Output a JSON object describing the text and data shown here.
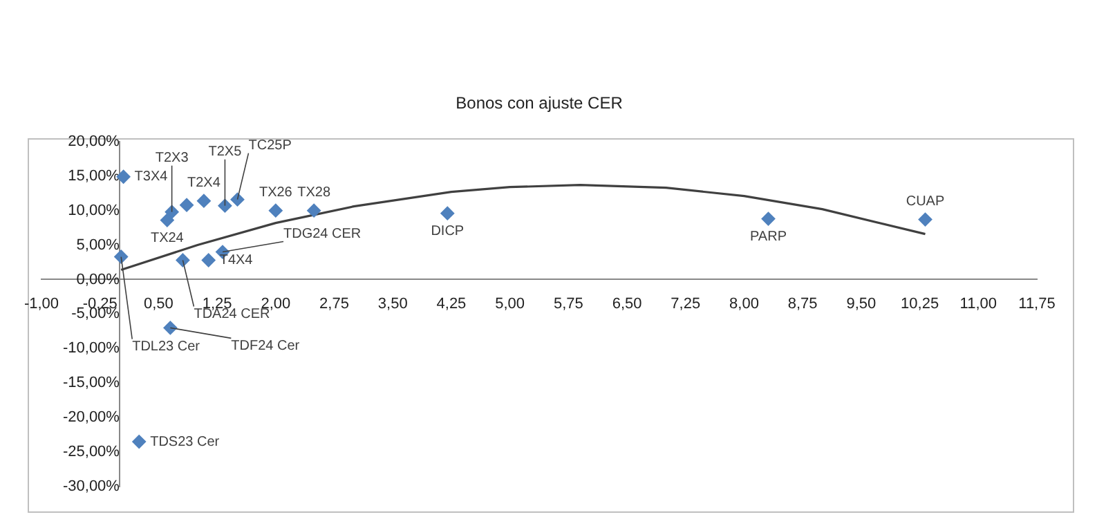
{
  "chart_data": {
    "type": "scatter",
    "title": "Bonos con ajuste CER",
    "marker": "diamond",
    "series": [
      {
        "color": "#4f81bd",
        "x": [
          0.05,
          0.02,
          0.67,
          0.61,
          0.86,
          1.08,
          1.35,
          1.51,
          2.0,
          2.49,
          0.81,
          1.14,
          1.32,
          4.2,
          8.31,
          10.32,
          0.65,
          0.25
        ],
        "values": [
          14.9,
          3.3,
          9.8,
          8.6,
          10.8,
          11.4,
          10.7,
          11.6,
          10.0,
          10.0,
          2.8,
          2.8,
          4.0,
          9.6,
          8.8,
          8.7,
          -7.0,
          -23.5
        ]
      },
      {
        "type": "line",
        "color": "#404040",
        "marker": "none",
        "x": [
          0.02,
          1,
          2,
          3,
          4.25,
          5,
          5.9,
          7,
          8,
          9,
          10.32
        ],
        "values": [
          1.4,
          5.0,
          8.2,
          10.6,
          12.7,
          13.4,
          13.7,
          13.3,
          12.1,
          10.2,
          6.6
        ]
      }
    ],
    "xlim": [
      -1,
      11.75
    ],
    "xticks": [
      {
        "value": -1,
        "label": "-1,00"
      },
      {
        "value": -0.25,
        "label": "-0,25"
      },
      {
        "value": 0.5,
        "label": "0,50"
      },
      {
        "value": 1.25,
        "label": "1,25"
      },
      {
        "value": 2,
        "label": "2,00"
      },
      {
        "value": 2.75,
        "label": "2,75"
      },
      {
        "value": 3.5,
        "label": "3,50"
      },
      {
        "value": 4.25,
        "label": "4,25"
      },
      {
        "value": 5,
        "label": "5,00"
      },
      {
        "value": 5.75,
        "label": "5,75"
      },
      {
        "value": 6.5,
        "label": "6,50"
      },
      {
        "value": 7.25,
        "label": "7,25"
      },
      {
        "value": 8,
        "label": "8,00"
      },
      {
        "value": 8.75,
        "label": "8,75"
      },
      {
        "value": 9.5,
        "label": "9,50"
      },
      {
        "value": 10.25,
        "label": "10,25"
      },
      {
        "value": 11,
        "label": "11,00"
      },
      {
        "value": 11.75,
        "label": "11,75"
      }
    ],
    "ylim": [
      -30,
      20
    ],
    "yticks": [
      {
        "value": -30,
        "label": "-30,00%"
      },
      {
        "value": -25,
        "label": "-25,00%"
      },
      {
        "value": -20,
        "label": "-20,00%"
      },
      {
        "value": -15,
        "label": "-15,00%"
      },
      {
        "value": -10,
        "label": "-10,00%"
      },
      {
        "value": -5,
        "label": "-5,00%"
      },
      {
        "value": 0,
        "label": "0,00%"
      },
      {
        "value": 5,
        "label": "5,00%"
      },
      {
        "value": 10,
        "label": "10,00%"
      },
      {
        "value": 15,
        "label": "15,00%"
      },
      {
        "value": 20,
        "label": "20,00%"
      }
    ],
    "annotations": [
      {
        "text": "T3X4",
        "x": 0.05,
        "y": 14.9
      },
      {
        "text": "TDL23 Cer",
        "x": 0.02,
        "y": 3.3
      },
      {
        "text": "T2X3",
        "x": 0.67,
        "y": 9.8
      },
      {
        "text": "TX24",
        "x": 0.61,
        "y": 8.6
      },
      {
        "text": "T2X4",
        "x": 1.08,
        "y": 11.4
      },
      {
        "text": "T2X5",
        "x": 1.35,
        "y": 10.7
      },
      {
        "text": "TC25P",
        "x": 1.51,
        "y": 11.6
      },
      {
        "text": "TX26",
        "x": 2.0,
        "y": 10.0
      },
      {
        "text": "TX28",
        "x": 2.49,
        "y": 10.0
      },
      {
        "text": "TDA24 CER",
        "x": 0.81,
        "y": 2.8
      },
      {
        "text": "T4X4",
        "x": 1.14,
        "y": 2.8
      },
      {
        "text": "TDG24 CER",
        "x": 1.32,
        "y": 4.0
      },
      {
        "text": "DICP",
        "x": 4.2,
        "y": 9.6
      },
      {
        "text": "PARP",
        "x": 8.31,
        "y": 8.8
      },
      {
        "text": "CUAP",
        "x": 10.32,
        "y": 8.7
      },
      {
        "text": "TDF24 Cer",
        "x": 0.65,
        "y": -7.0
      },
      {
        "text": "TDS23 Cer",
        "x": 0.25,
        "y": -23.5
      }
    ]
  }
}
